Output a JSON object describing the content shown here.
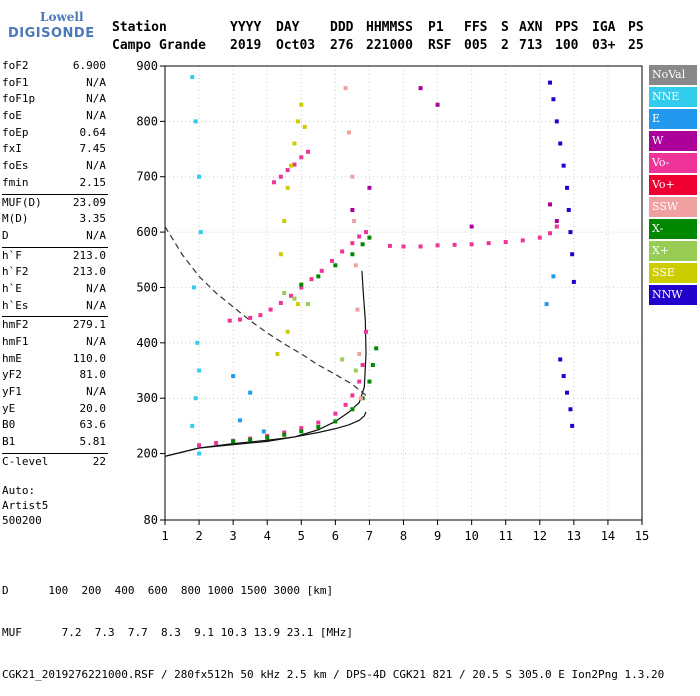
{
  "logo": {
    "line1": "Lowell",
    "line2": "DIGISONDE"
  },
  "header": {
    "labels": [
      "Station",
      "YYYY",
      "DAY",
      "DDD",
      "HHMMSS",
      "P1",
      "FFS",
      "S",
      "AXN",
      "PPS",
      "IGA",
      "PS"
    ],
    "values": [
      "Campo Grande",
      "2019",
      "Oct03",
      "276",
      "221000",
      "RSF",
      "005",
      "2",
      "713",
      "100",
      "03+",
      "25"
    ]
  },
  "params": [
    [
      [
        "foF2",
        "6.900"
      ],
      [
        "foF1",
        "N/A"
      ],
      [
        "foF1p",
        "N/A"
      ],
      [
        "foE",
        "N/A"
      ],
      [
        "foEp",
        "0.64"
      ],
      [
        "fxI",
        "7.45"
      ],
      [
        "foEs",
        "N/A"
      ],
      [
        "fmin",
        "2.15"
      ]
    ],
    [
      [
        "MUF(D)",
        "23.09"
      ],
      [
        "M(D)",
        "3.35"
      ],
      [
        "D",
        "N/A"
      ]
    ],
    [
      [
        "h`F",
        "213.0"
      ],
      [
        "h`F2",
        "213.0"
      ],
      [
        "h`E",
        "N/A"
      ],
      [
        "h`Es",
        "N/A"
      ]
    ],
    [
      [
        "hmF2",
        "279.1"
      ],
      [
        "hmF1",
        "N/A"
      ],
      [
        "hmE",
        "110.0"
      ],
      [
        "yF2",
        "81.0"
      ],
      [
        "yF1",
        "N/A"
      ],
      [
        "yE",
        "20.0"
      ],
      [
        "B0",
        "63.6"
      ],
      [
        "B1",
        "5.81"
      ]
    ],
    [
      [
        "C-level",
        "22"
      ]
    ]
  ],
  "auto": {
    "line1": "Auto:",
    "line2": "Artist5",
    "line3": "500200"
  },
  "legend": [
    {
      "label": "NoVal",
      "color": "#888888"
    },
    {
      "label": "NNE",
      "color": "#33ccee"
    },
    {
      "label": "E",
      "color": "#2299ee"
    },
    {
      "label": "W",
      "color": "#aa0099"
    },
    {
      "label": "Vo-",
      "color": "#ee3399"
    },
    {
      "label": "Vo+",
      "color": "#ee0033"
    },
    {
      "label": "SSW",
      "color": "#f0a0a0"
    },
    {
      "label": "X-",
      "color": "#008800"
    },
    {
      "label": "X+",
      "color": "#99cc55"
    },
    {
      "label": "SSE",
      "color": "#cccc00"
    },
    {
      "label": "NNW",
      "color": "#2200cc"
    }
  ],
  "bottom": {
    "row1_label": "D",
    "row1_values": "100  200  400  600  800 1000 1500 3000 [km]",
    "row2_label": "MUF",
    "row2_values": "7.2  7.3  7.7  8.3  9.1 10.3 13.9 23.1 [MHz]",
    "footer": "CGK21_2019276221000.RSF / 280fx512h 50 kHz 2.5 km / DPS-4D CGK21 821 / 20.5 S 305.0 E Ion2Png 1.3.20"
  },
  "chart_data": {
    "type": "scatter",
    "xlim": [
      1,
      15
    ],
    "ylim": [
      80,
      900
    ],
    "xticks": [
      1,
      2,
      3,
      4,
      5,
      6,
      7,
      8,
      9,
      10,
      11,
      12,
      13,
      14,
      15
    ],
    "yticks": [
      80,
      200,
      300,
      400,
      500,
      600,
      700,
      800,
      900
    ],
    "series": [
      {
        "name": "Vo-",
        "color": "#ee3399",
        "x": [
          2.0,
          2.5,
          3.0,
          3.5,
          4.0,
          4.5,
          5.0,
          5.5,
          6.0,
          6.3,
          6.5,
          6.7,
          6.8,
          6.9
        ],
        "y": [
          215,
          219,
          223,
          227,
          232,
          238,
          246,
          256,
          272,
          288,
          305,
          330,
          360,
          420
        ]
      },
      {
        "name": "X-",
        "color": "#008800",
        "x": [
          3.0,
          3.5,
          4.0,
          4.5,
          5.0,
          5.5,
          6.0,
          6.5,
          6.8,
          7.0,
          7.1,
          7.2
        ],
        "y": [
          222,
          225,
          229,
          234,
          240,
          248,
          258,
          280,
          300,
          330,
          360,
          390
        ]
      },
      {
        "name": "Vo-",
        "color": "#ee3399",
        "x": [
          2.9,
          3.2,
          3.5,
          3.8,
          4.1,
          4.4,
          4.7,
          5.0,
          5.3,
          5.6,
          5.9,
          6.2,
          6.5,
          6.7,
          6.9
        ],
        "y": [
          440,
          442,
          445,
          450,
          460,
          472,
          485,
          500,
          515,
          530,
          548,
          565,
          580,
          592,
          600
        ]
      },
      {
        "name": "X-",
        "color": "#008800",
        "x": [
          5.0,
          5.5,
          6.0,
          6.5,
          6.8,
          7.0
        ],
        "y": [
          505,
          520,
          540,
          560,
          578,
          590
        ]
      },
      {
        "name": "Vo-",
        "color": "#ee3399",
        "x": [
          4.2,
          4.4,
          4.6,
          4.8,
          5.0,
          5.2
        ],
        "y": [
          690,
          700,
          712,
          722,
          735,
          745
        ]
      },
      {
        "name": "Vo-",
        "color": "#ee3399",
        "x": [
          7.6,
          8.0,
          8.5,
          9.0,
          9.5,
          10.0,
          10.5,
          11.0,
          11.5,
          12.0,
          12.3,
          12.5
        ],
        "y": [
          575,
          574,
          574,
          576,
          577,
          578,
          580,
          582,
          585,
          590,
          598,
          610
        ]
      },
      {
        "name": "W",
        "color": "#aa0099",
        "x": [
          6.5,
          7.0,
          8.5,
          9.0,
          10.0,
          12.3,
          12.5
        ],
        "y": [
          640,
          680,
          860,
          830,
          610,
          650,
          620
        ]
      },
      {
        "name": "NNW",
        "color": "#2200cc",
        "x": [
          12.3,
          12.4,
          12.5,
          12.6,
          12.7,
          12.8,
          12.85,
          12.9,
          12.95,
          13.0,
          12.6,
          12.7,
          12.8,
          12.9,
          12.95
        ],
        "y": [
          870,
          840,
          800,
          760,
          720,
          680,
          640,
          600,
          560,
          510,
          370,
          340,
          310,
          280,
          250
        ]
      },
      {
        "name": "NNE",
        "color": "#33ccee",
        "x": [
          1.8,
          1.9,
          2.0,
          2.05,
          1.85,
          1.95,
          2.0,
          1.9,
          1.8,
          2.0
        ],
        "y": [
          880,
          800,
          700,
          600,
          500,
          400,
          350,
          300,
          250,
          200
        ]
      },
      {
        "name": "SSE",
        "color": "#cccc00",
        "x": [
          4.4,
          4.5,
          4.6,
          4.7,
          4.8,
          4.9,
          5.0,
          5.1,
          4.3,
          4.6,
          4.9
        ],
        "y": [
          560,
          620,
          680,
          720,
          760,
          800,
          830,
          790,
          380,
          420,
          470
        ]
      },
      {
        "name": "SSW",
        "color": "#f0a0a0",
        "x": [
          6.3,
          6.4,
          6.5,
          6.55,
          6.6,
          6.65,
          6.7,
          6.75
        ],
        "y": [
          860,
          780,
          700,
          620,
          540,
          460,
          380,
          300
        ]
      },
      {
        "name": "E",
        "color": "#2299ee",
        "x": [
          3.0,
          3.2,
          3.5,
          3.9,
          12.2,
          12.4
        ],
        "y": [
          340,
          260,
          310,
          240,
          470,
          520
        ]
      },
      {
        "name": "X+",
        "color": "#99cc55",
        "x": [
          4.5,
          4.8,
          5.2,
          6.2,
          6.6
        ],
        "y": [
          490,
          480,
          470,
          370,
          350
        ]
      }
    ],
    "curves": [
      {
        "name": "profile-solid",
        "x": [
          1.0,
          2.0,
          3.0,
          4.0,
          4.8,
          5.5,
          6.0,
          6.4,
          6.7,
          6.85,
          6.9,
          6.88,
          6.82,
          6.78
        ],
        "y": [
          195,
          210,
          216,
          222,
          230,
          243,
          258,
          275,
          292,
          320,
          380,
          440,
          490,
          530
        ]
      },
      {
        "name": "profile-lower",
        "x": [
          1.0,
          2.0,
          3.0,
          4.0,
          4.8,
          5.5,
          6.0,
          6.4,
          6.7,
          6.85,
          6.9
        ],
        "y": [
          195,
          210,
          218,
          224,
          230,
          238,
          245,
          252,
          260,
          268,
          275
        ]
      },
      {
        "name": "profile-dashed",
        "x": [
          1.0,
          1.5,
          2.0,
          2.5,
          3.0,
          3.5,
          4.0,
          4.5,
          5.0,
          5.5,
          6.0,
          6.5,
          6.9
        ],
        "y": [
          610,
          560,
          520,
          490,
          465,
          440,
          418,
          398,
          380,
          360,
          343,
          325,
          305
        ]
      }
    ]
  }
}
